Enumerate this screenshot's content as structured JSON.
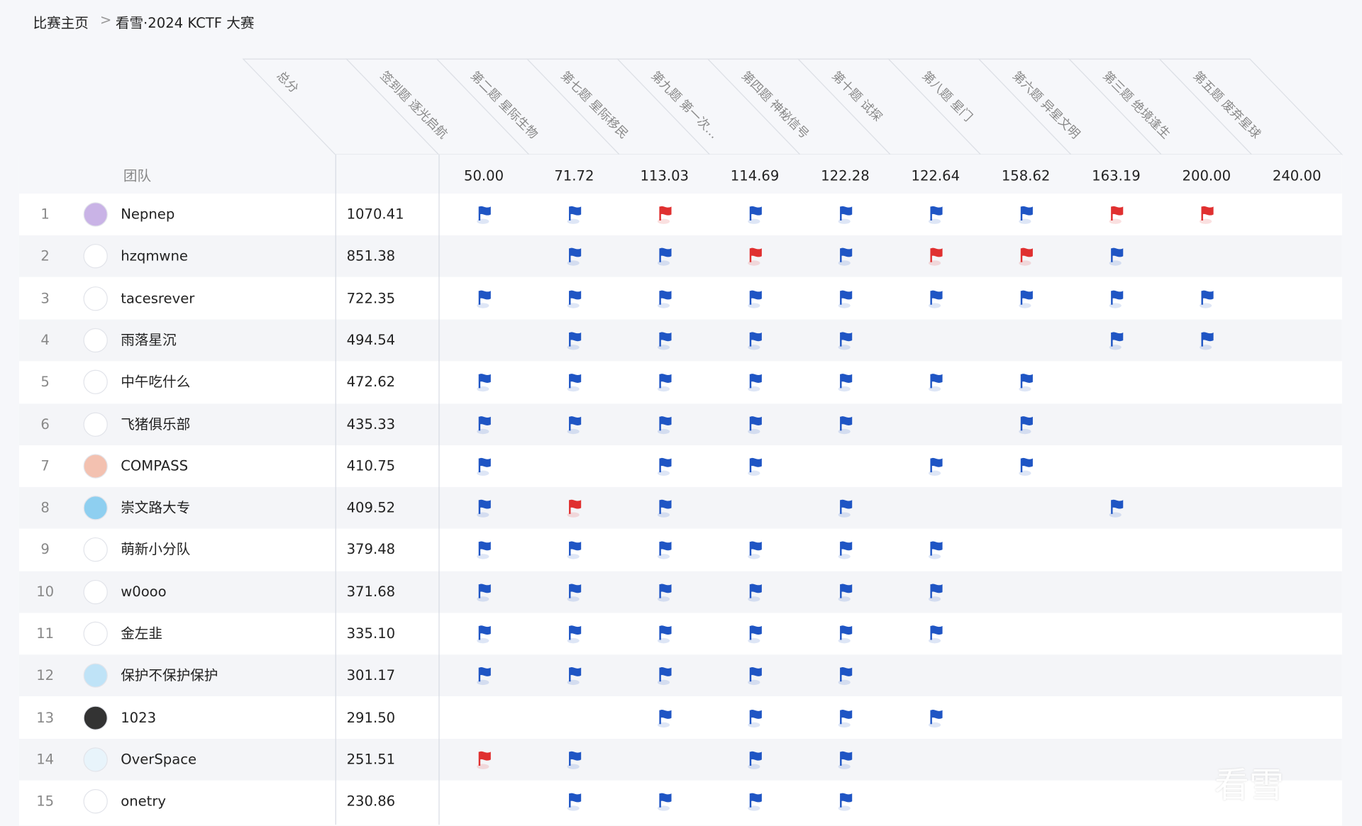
{
  "breadcrumb": {
    "home": "比赛主页",
    "separator": ">",
    "current": "看雪·2024 KCTF 大赛"
  },
  "table": {
    "team_header": "团队",
    "columns": [
      "总分",
      "签到题 逐光启航",
      "第二题 星际生物",
      "第七题 星际移民",
      "第九题 第一次…",
      "第四题 神秘信号",
      "第十题 试探",
      "第八题 星门",
      "第六题 异星文明",
      "第三题 绝境逢生",
      "第五题 废弃星球"
    ],
    "points": [
      "50.00",
      "71.72",
      "113.03",
      "114.69",
      "122.28",
      "122.64",
      "158.62",
      "163.19",
      "200.00",
      "240.00"
    ],
    "solved_color": "#1f55c4",
    "first_blood_color": "#e03030",
    "rows": [
      {
        "rank": "1",
        "team": "Nepnep",
        "score": "1070.41",
        "flags": [
          "#1f55c4",
          "#1f55c4",
          "#e03030",
          "#1f55c4",
          "#1f55c4",
          "#1f55c4",
          "#1f55c4",
          "#e03030",
          "#e03030",
          null
        ]
      },
      {
        "rank": "2",
        "team": "hzqmwne",
        "score": "851.38",
        "flags": [
          null,
          "#1f55c4",
          "#1f55c4",
          "#e03030",
          "#1f55c4",
          "#e03030",
          "#e03030",
          "#1f55c4",
          null,
          null
        ]
      },
      {
        "rank": "3",
        "team": "tacesrever",
        "score": "722.35",
        "flags": [
          "#1f55c4",
          "#1f55c4",
          "#1f55c4",
          "#1f55c4",
          "#1f55c4",
          "#1f55c4",
          "#1f55c4",
          "#1f55c4",
          "#1f55c4",
          null
        ]
      },
      {
        "rank": "4",
        "team": "雨落星沉",
        "score": "494.54",
        "flags": [
          null,
          "#1f55c4",
          "#1f55c4",
          "#1f55c4",
          "#1f55c4",
          null,
          null,
          "#1f55c4",
          "#1f55c4",
          null
        ]
      },
      {
        "rank": "5",
        "team": "中午吃什么",
        "score": "472.62",
        "flags": [
          "#1f55c4",
          "#1f55c4",
          "#1f55c4",
          "#1f55c4",
          "#1f55c4",
          "#1f55c4",
          "#1f55c4",
          null,
          null,
          null
        ]
      },
      {
        "rank": "6",
        "team": "飞猪俱乐部",
        "score": "435.33",
        "flags": [
          "#1f55c4",
          "#1f55c4",
          "#1f55c4",
          "#1f55c4",
          "#1f55c4",
          null,
          "#1f55c4",
          null,
          null,
          null
        ]
      },
      {
        "rank": "7",
        "team": "COMPASS",
        "score": "410.75",
        "flags": [
          "#1f55c4",
          null,
          "#1f55c4",
          "#1f55c4",
          null,
          "#1f55c4",
          "#1f55c4",
          null,
          null,
          null
        ]
      },
      {
        "rank": "8",
        "team": "崇文路大专",
        "score": "409.52",
        "flags": [
          "#1f55c4",
          "#e03030",
          "#1f55c4",
          null,
          "#1f55c4",
          null,
          null,
          "#1f55c4",
          null,
          null
        ]
      },
      {
        "rank": "9",
        "team": "萌新小分队",
        "score": "379.48",
        "flags": [
          "#1f55c4",
          "#1f55c4",
          "#1f55c4",
          "#1f55c4",
          "#1f55c4",
          "#1f55c4",
          null,
          null,
          null,
          null
        ]
      },
      {
        "rank": "10",
        "team": "w0ooo",
        "score": "371.68",
        "flags": [
          "#1f55c4",
          "#1f55c4",
          "#1f55c4",
          "#1f55c4",
          "#1f55c4",
          "#1f55c4",
          null,
          null,
          null,
          null
        ]
      },
      {
        "rank": "11",
        "team": "金左韭",
        "score": "335.10",
        "flags": [
          "#1f55c4",
          "#1f55c4",
          "#1f55c4",
          "#1f55c4",
          "#1f55c4",
          "#1f55c4",
          null,
          null,
          null,
          null
        ]
      },
      {
        "rank": "12",
        "team": "保护不保护保护",
        "score": "301.17",
        "flags": [
          "#1f55c4",
          "#1f55c4",
          "#1f55c4",
          "#1f55c4",
          "#1f55c4",
          null,
          null,
          null,
          null,
          null
        ]
      },
      {
        "rank": "13",
        "team": "1023",
        "score": "291.50",
        "flags": [
          null,
          null,
          "#1f55c4",
          "#1f55c4",
          "#1f55c4",
          "#1f55c4",
          null,
          null,
          null,
          null
        ]
      },
      {
        "rank": "14",
        "team": "OverSpace",
        "score": "251.51",
        "flags": [
          "#e03030",
          "#1f55c4",
          null,
          "#1f55c4",
          "#1f55c4",
          null,
          null,
          null,
          null,
          null
        ]
      },
      {
        "rank": "15",
        "team": "onetry",
        "score": "230.86",
        "flags": [
          null,
          "#1f55c4",
          "#1f55c4",
          "#1f55c4",
          "#1f55c4",
          null,
          null,
          null,
          null,
          null
        ]
      }
    ]
  },
  "watermark": "看雪"
}
